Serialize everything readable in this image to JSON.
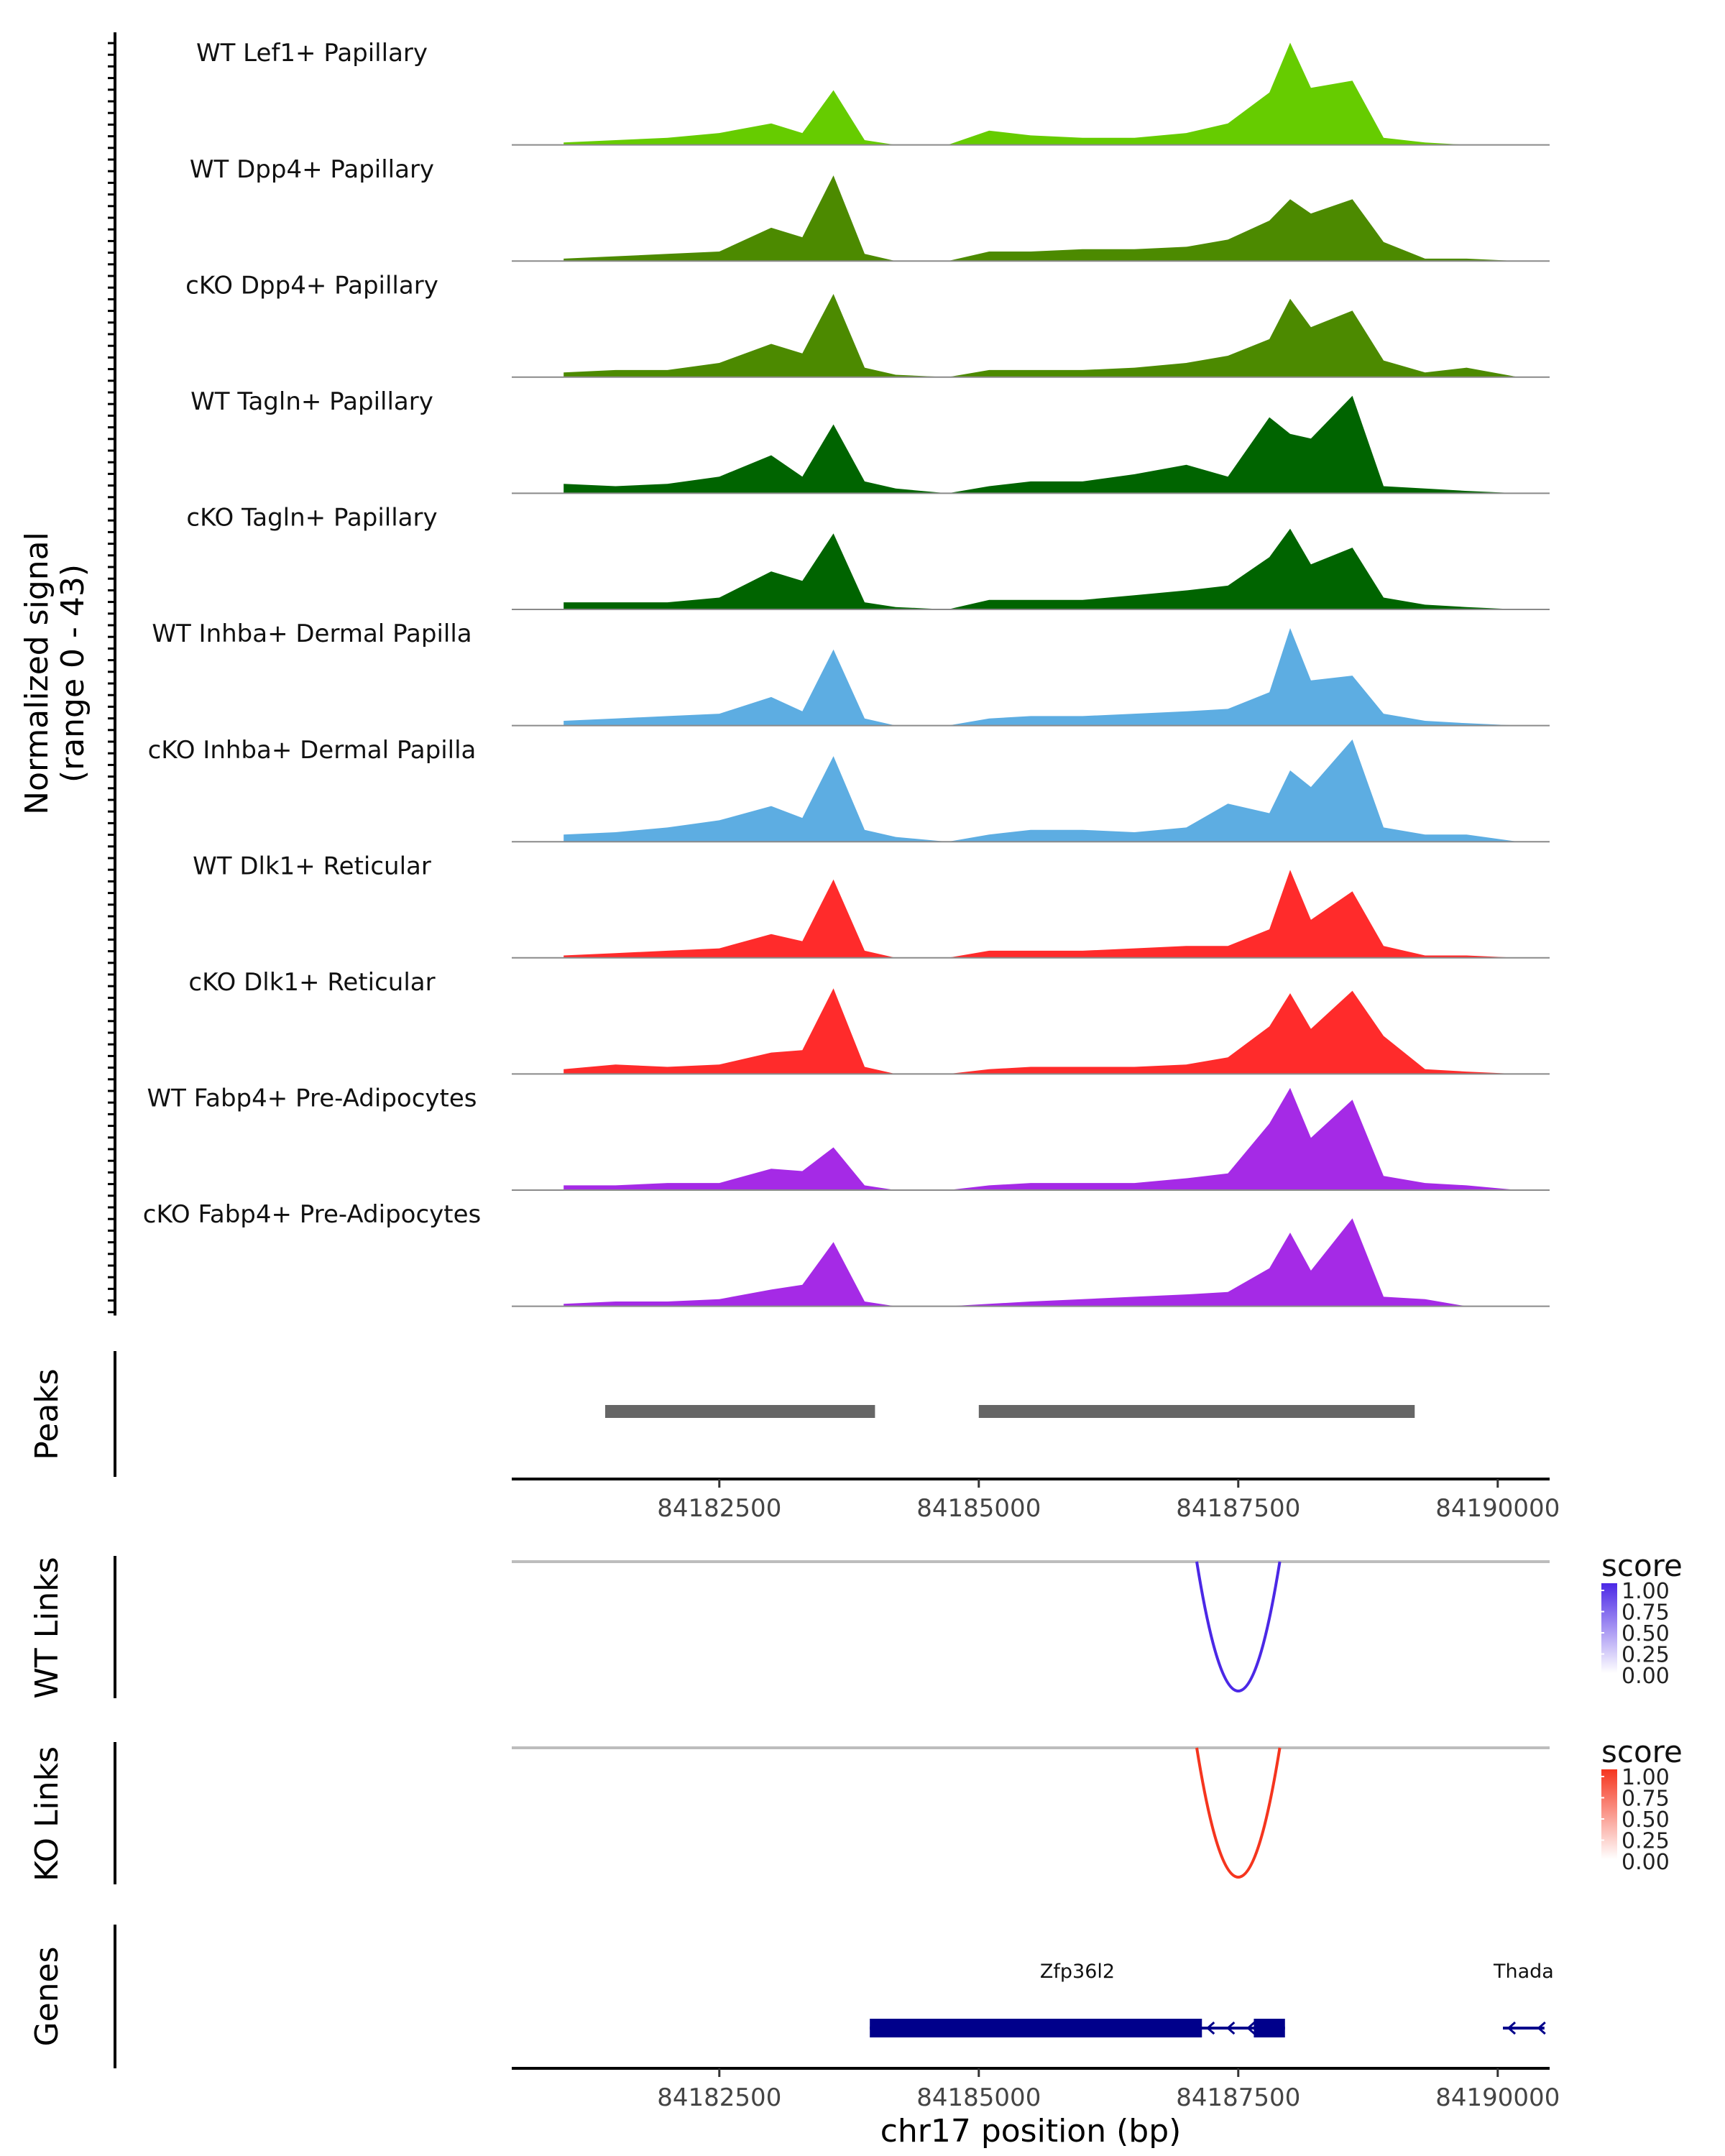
{
  "chart_data": {
    "type": "area",
    "title": "",
    "region": "chr17",
    "xlabel": "chr17 position (bp)",
    "xlim": [
      84180500,
      84190500
    ],
    "x_ticks": [
      84182500,
      84185000,
      84187500,
      84190000
    ],
    "x_tick_labels": [
      "84182500",
      "84185000",
      "84187500",
      "84190000"
    ],
    "coverage": {
      "ylabel_line1": "Normalized signal",
      "ylabel_line2": "(range 0 - 43)",
      "ylim": [
        0,
        43
      ],
      "x_positions": [
        84181000,
        84181500,
        84182000,
        84182500,
        84183000,
        84183300,
        84183600,
        84183900,
        84184200,
        84184700,
        84185100,
        84185500,
        84186000,
        84186500,
        84187000,
        84187400,
        84187800,
        84188000,
        84188200,
        84188600,
        84188900,
        84189300,
        84189700,
        84190200
      ],
      "tracks": [
        {
          "name": "WT Lef1+ Papillary",
          "color": "#66CC00",
          "values": [
            1,
            2,
            3,
            5,
            9,
            5,
            23,
            2,
            0,
            0,
            6,
            4,
            3,
            3,
            5,
            9,
            22,
            43,
            24,
            27,
            3,
            1,
            0,
            0
          ]
        },
        {
          "name": "WT Dpp4+ Papillary",
          "color": "#4C8A00",
          "values": [
            1,
            2,
            3,
            4,
            14,
            10,
            36,
            3,
            0,
            0,
            4,
            4,
            5,
            5,
            6,
            9,
            17,
            26,
            20,
            26,
            8,
            1,
            1,
            0
          ]
        },
        {
          "name": "cKO Dpp4+ Papillary",
          "color": "#4C8A00",
          "values": [
            2,
            3,
            3,
            6,
            14,
            10,
            35,
            4,
            1,
            0,
            3,
            3,
            3,
            4,
            6,
            9,
            16,
            33,
            21,
            28,
            7,
            2,
            4,
            0
          ]
        },
        {
          "name": "WT Tagln+ Papillary",
          "color": "#006400",
          "values": [
            4,
            3,
            4,
            7,
            16,
            7,
            29,
            5,
            2,
            0,
            3,
            5,
            5,
            8,
            12,
            7,
            32,
            25,
            23,
            41,
            3,
            2,
            1,
            0
          ]
        },
        {
          "name": "cKO Tagln+ Papillary",
          "color": "#006400",
          "values": [
            3,
            3,
            3,
            5,
            16,
            12,
            32,
            3,
            1,
            0,
            4,
            4,
            4,
            6,
            8,
            10,
            22,
            34,
            19,
            26,
            5,
            2,
            1,
            0
          ]
        },
        {
          "name": "WT Inhba+ Dermal Papilla",
          "color": "#5DADE2",
          "values": [
            2,
            3,
            4,
            5,
            12,
            6,
            32,
            3,
            0,
            0,
            3,
            4,
            4,
            5,
            6,
            7,
            14,
            41,
            19,
            21,
            5,
            2,
            1,
            0
          ]
        },
        {
          "name": "cKO Inhba+ Dermal Papilla",
          "color": "#5DADE2",
          "values": [
            3,
            4,
            6,
            9,
            15,
            10,
            36,
            5,
            2,
            0,
            3,
            5,
            5,
            4,
            6,
            16,
            12,
            30,
            23,
            43,
            6,
            3,
            3,
            0
          ]
        },
        {
          "name": "WT Dlk1+ Reticular",
          "color": "#FF2B2B",
          "values": [
            1,
            2,
            3,
            4,
            10,
            7,
            33,
            3,
            0,
            0,
            3,
            3,
            3,
            4,
            5,
            5,
            12,
            37,
            16,
            28,
            5,
            1,
            1,
            0
          ]
        },
        {
          "name": "cKO Dlk1+ Reticular",
          "color": "#FF2B2B",
          "values": [
            2,
            4,
            3,
            4,
            9,
            10,
            36,
            3,
            0,
            0,
            2,
            3,
            3,
            3,
            4,
            7,
            20,
            34,
            19,
            35,
            16,
            2,
            1,
            0
          ]
        },
        {
          "name": "WT Fabp4+ Pre-Adipocytes",
          "color": "#A52AE6",
          "values": [
            2,
            2,
            3,
            3,
            9,
            8,
            18,
            2,
            0,
            0,
            2,
            3,
            3,
            3,
            5,
            7,
            28,
            43,
            22,
            38,
            6,
            3,
            2,
            0
          ]
        },
        {
          "name": "cKO Fabp4+ Pre-Adipocytes",
          "color": "#A52AE6",
          "values": [
            1,
            2,
            2,
            3,
            7,
            9,
            27,
            2,
            0,
            0,
            1,
            2,
            3,
            4,
            5,
            6,
            16,
            31,
            15,
            37,
            4,
            3,
            0,
            0
          ]
        }
      ]
    },
    "peaks": {
      "label": "Peaks",
      "color": "#666666",
      "ranges": [
        [
          84181400,
          84184000
        ],
        [
          84185000,
          84189200
        ]
      ]
    },
    "links": [
      {
        "label": "WT Links",
        "legend_title": "score",
        "color_high": "#4B28E6",
        "score": 1.0,
        "start": 84187100,
        "end": 84187900,
        "legend_ticks": [
          "1.00",
          "0.75",
          "0.50",
          "0.25",
          "0.00"
        ]
      },
      {
        "label": "KO Links",
        "legend_title": "score",
        "color_high": "#F5351E",
        "score": 1.0,
        "start": 84187100,
        "end": 84187900,
        "legend_ticks": [
          "1.00",
          "0.75",
          "0.50",
          "0.25",
          "0.00"
        ]
      }
    ],
    "genes": {
      "label": "Genes",
      "color": "#00008B",
      "items": [
        {
          "name": "Zfp36l2",
          "start": 84183950,
          "end": 84187950,
          "strand": "-",
          "exons": [
            [
              84183950,
              84187150
            ],
            [
              84187650,
              84187950
            ]
          ]
        },
        {
          "name": "Thada",
          "start": 84190050,
          "end": 84190450,
          "strand": "-",
          "exons": []
        }
      ]
    }
  }
}
